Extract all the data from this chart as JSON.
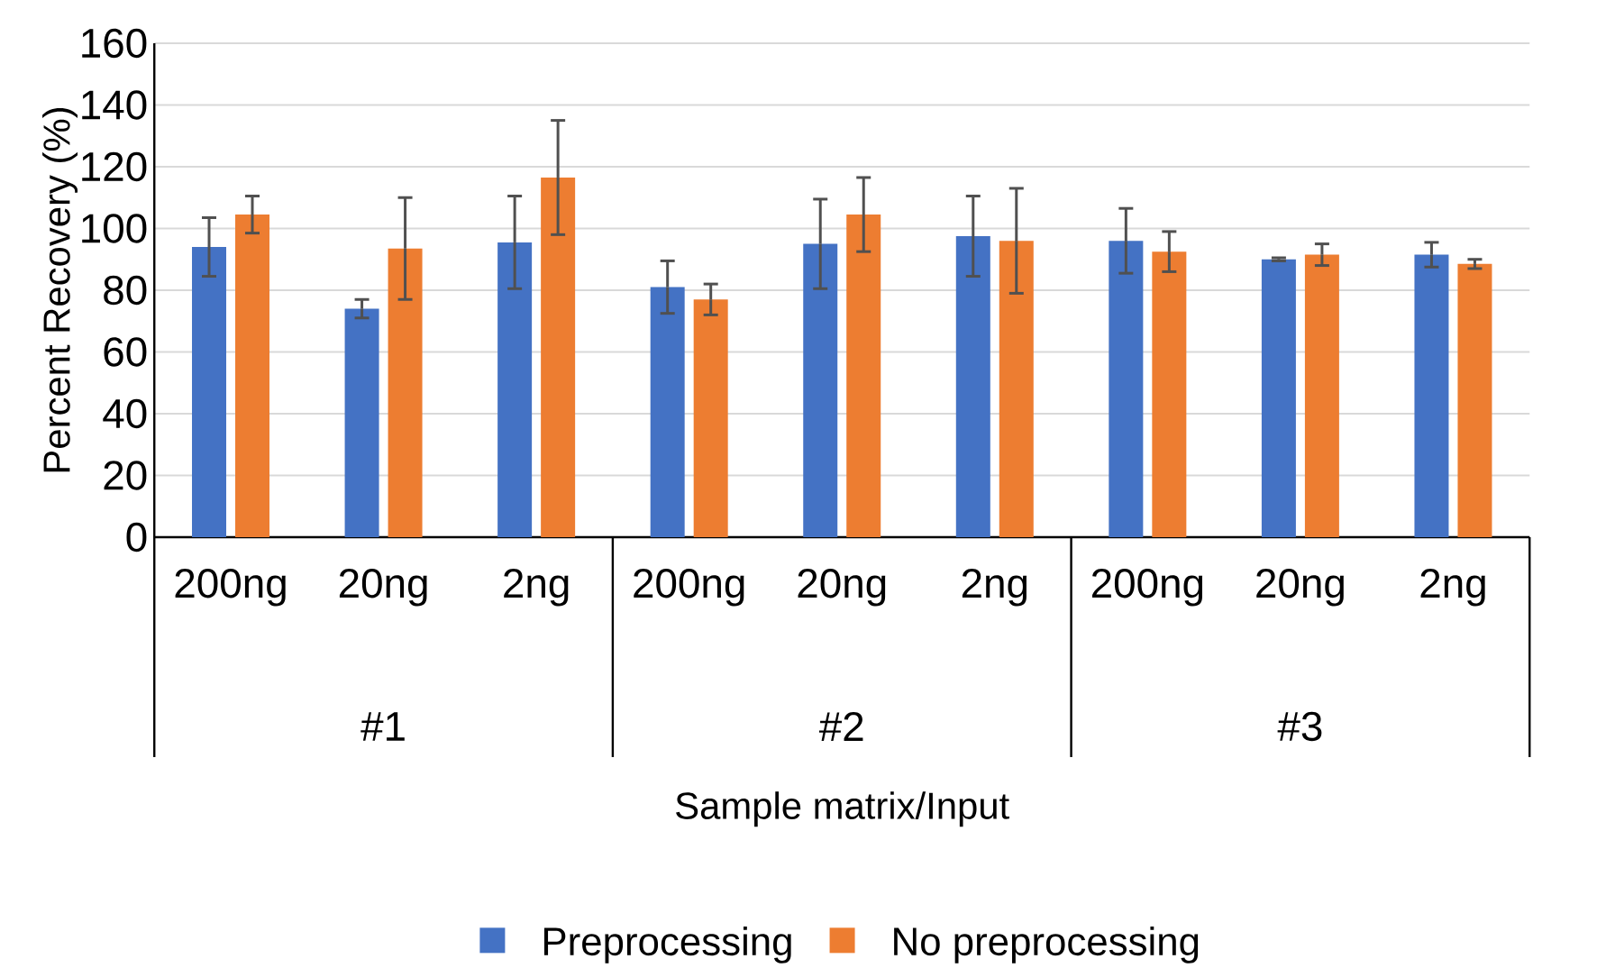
{
  "chart_data": {
    "type": "bar",
    "xlabel": "Sample matrix/Input",
    "ylabel": "Percent Recovery (%)",
    "categories": [
      "200ng",
      "20ng",
      "2ng",
      "200ng",
      "20ng",
      "2ng",
      "200ng",
      "20ng",
      "2ng"
    ],
    "annotations": [
      "#1",
      "#2",
      "#3"
    ],
    "series": [
      {
        "name": "Preprocessing",
        "color": "#4472c4",
        "values": [
          94,
          74,
          95.5,
          81,
          95,
          97.5,
          96,
          90,
          91.5
        ],
        "errors": [
          9.5,
          3,
          15,
          8.5,
          14.5,
          13,
          10.5,
          0.5,
          4
        ]
      },
      {
        "name": "No preprocessing",
        "color": "#ed7d31",
        "values": [
          104.5,
          93.5,
          116.5,
          77,
          104.5,
          96,
          92.5,
          91.5,
          88.5
        ],
        "errors": [
          6,
          16.5,
          18.5,
          5,
          12,
          17,
          6.5,
          3.5,
          1.5
        ]
      }
    ],
    "ylim": [
      0,
      160
    ],
    "yticks": [
      0,
      20,
      40,
      60,
      80,
      100,
      120,
      140,
      160
    ],
    "grid": "y",
    "legend": "bottom"
  }
}
